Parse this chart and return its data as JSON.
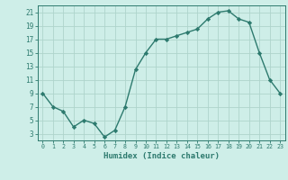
{
  "x": [
    0,
    1,
    2,
    3,
    4,
    5,
    6,
    7,
    8,
    9,
    10,
    11,
    12,
    13,
    14,
    15,
    16,
    17,
    18,
    19,
    20,
    21,
    22,
    23
  ],
  "y": [
    9,
    7,
    6.3,
    4,
    5,
    4.5,
    2.5,
    3.5,
    7,
    12.5,
    15,
    17,
    17,
    17.5,
    18,
    18.5,
    20,
    21,
    21.2,
    20,
    19.5,
    15,
    11,
    9
  ],
  "xlabel": "Humidex (Indice chaleur)",
  "ylim": [
    2,
    22
  ],
  "xlim": [
    -0.5,
    23.5
  ],
  "yticks": [
    3,
    5,
    7,
    9,
    11,
    13,
    15,
    17,
    19,
    21
  ],
  "xticks": [
    0,
    1,
    2,
    3,
    4,
    5,
    6,
    7,
    8,
    9,
    10,
    11,
    12,
    13,
    14,
    15,
    16,
    17,
    18,
    19,
    20,
    21,
    22,
    23
  ],
  "line_color": "#2d7a6e",
  "marker_color": "#2d7a6e",
  "bg_color": "#ceeee8",
  "grid_color": "#aed4cc",
  "xlabel_color": "#2d7a6e",
  "tick_color": "#2d7a6e"
}
